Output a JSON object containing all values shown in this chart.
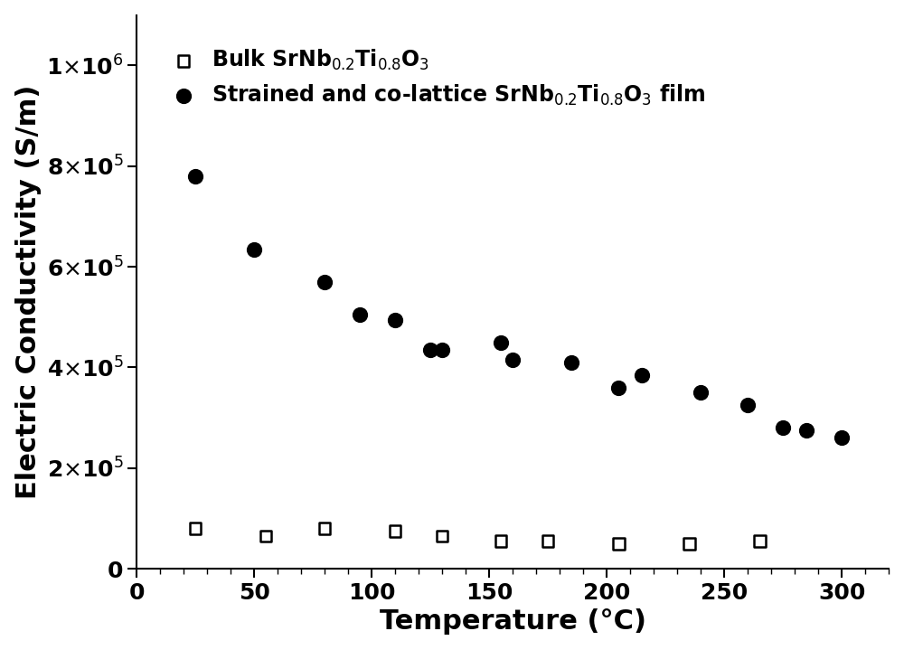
{
  "film_x": [
    25,
    50,
    80,
    95,
    110,
    125,
    130,
    155,
    160,
    185,
    205,
    215,
    240,
    260,
    275,
    285,
    300
  ],
  "film_y": [
    780000,
    635000,
    570000,
    505000,
    495000,
    435000,
    435000,
    450000,
    415000,
    410000,
    360000,
    385000,
    350000,
    325000,
    280000,
    275000,
    260000
  ],
  "bulk_x": [
    25,
    55,
    80,
    110,
    130,
    155,
    175,
    205,
    235,
    265
  ],
  "bulk_y": [
    80000,
    65000,
    80000,
    75000,
    65000,
    55000,
    55000,
    50000,
    50000,
    55000
  ],
  "xlabel": "Temperature (°C)",
  "ylabel": "Electric Conductivity (S/m)",
  "xlim": [
    0,
    320
  ],
  "ylim": [
    0,
    1100000
  ],
  "yticks": [
    0,
    200000,
    400000,
    600000,
    800000,
    1000000
  ],
  "xticks": [
    0,
    50,
    100,
    150,
    200,
    250,
    300
  ],
  "legend_bulk": "Bulk SrNb$_{0.2}$Ti$_{0.8}$O$_3$",
  "legend_film": "Strained and co-lattice SrNb$_{0.2}$Ti$_{0.8}$O$_3$ film",
  "marker_size_film": 130,
  "marker_size_bulk": 80,
  "font_size_label": 22,
  "font_size_tick": 18,
  "font_size_legend": 17,
  "bg_color": "#ffffff"
}
